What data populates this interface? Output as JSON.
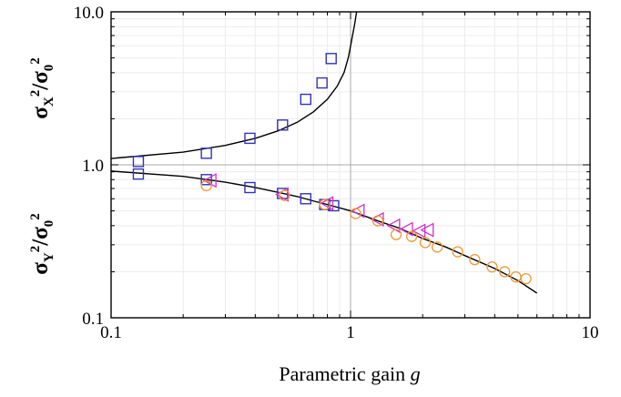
{
  "chart_data": {
    "type": "scatter",
    "title": "",
    "xlabel": "Parametric gain",
    "xlabel_symbol": "g",
    "ylabel_top": {
      "base": "σ",
      "sub1": "X",
      "sup1": "2",
      "slash": "/",
      "base2": "σ",
      "sub2": "0",
      "sup2": "2"
    },
    "ylabel_bottom": {
      "base": "σ",
      "sub1": "Y",
      "sup1": "2",
      "slash": "/",
      "base2": "σ",
      "sub2": "0",
      "sup2": "2"
    },
    "x_scale": "log",
    "y_scale": "log",
    "xlim": [
      0.1,
      10
    ],
    "ylim": [
      0.1,
      10
    ],
    "x_ticks": [
      {
        "value": 0.1,
        "label": "0.1"
      },
      {
        "value": 1,
        "label": "1"
      },
      {
        "value": 10,
        "label": "10"
      }
    ],
    "y_ticks": [
      {
        "value": 0.1,
        "label": "0.1"
      },
      {
        "value": 1,
        "label": "1.0"
      },
      {
        "value": 10,
        "label": "10.0"
      }
    ],
    "grid": true,
    "reference_lines": {
      "x": 1,
      "y": 1
    },
    "series": [
      {
        "marker": "square",
        "color": "#3333bb",
        "points": [
          [
            0.13,
            1.05
          ],
          [
            0.25,
            1.19
          ],
          [
            0.38,
            1.49
          ],
          [
            0.52,
            1.82
          ],
          [
            0.65,
            2.68
          ],
          [
            0.76,
            3.43
          ],
          [
            0.83,
            4.95
          ]
        ]
      },
      {
        "marker": "square",
        "color": "#3333bb",
        "points": [
          [
            0.13,
            0.87
          ],
          [
            0.25,
            0.8
          ],
          [
            0.38,
            0.71
          ],
          [
            0.52,
            0.65
          ],
          [
            0.65,
            0.6
          ],
          [
            0.78,
            0.55
          ],
          [
            0.85,
            0.54
          ]
        ]
      },
      {
        "marker": "triangle-left",
        "color": "#cc33cc",
        "points": [
          [
            0.26,
            0.79
          ],
          [
            0.52,
            0.64
          ],
          [
            0.8,
            0.56
          ],
          [
            1.08,
            0.5
          ],
          [
            1.3,
            0.44
          ],
          [
            1.52,
            0.4
          ],
          [
            1.72,
            0.38
          ],
          [
            1.94,
            0.37
          ],
          [
            2.1,
            0.375
          ]
        ]
      },
      {
        "marker": "circle",
        "color": "#ee9933",
        "points": [
          [
            0.25,
            0.73
          ],
          [
            0.53,
            0.63
          ],
          [
            0.78,
            0.55
          ],
          [
            1.05,
            0.48
          ],
          [
            1.3,
            0.43
          ],
          [
            1.55,
            0.35
          ],
          [
            1.8,
            0.34
          ],
          [
            2.05,
            0.31
          ],
          [
            2.3,
            0.29
          ],
          [
            2.8,
            0.27
          ],
          [
            3.3,
            0.24
          ],
          [
            3.9,
            0.215
          ],
          [
            4.4,
            0.2
          ],
          [
            4.9,
            0.185
          ],
          [
            5.4,
            0.18
          ]
        ]
      }
    ],
    "curves": [
      {
        "color": "#000000",
        "points": [
          [
            0.1,
            1.1
          ],
          [
            0.2,
            1.21
          ],
          [
            0.3,
            1.34
          ],
          [
            0.4,
            1.49
          ],
          [
            0.5,
            1.67
          ],
          [
            0.6,
            1.9
          ],
          [
            0.7,
            2.22
          ],
          [
            0.8,
            2.68
          ],
          [
            0.88,
            3.27
          ],
          [
            0.94,
            4.02
          ],
          [
            0.98,
            5.06
          ],
          [
            1.01,
            6.5
          ],
          [
            1.04,
            8.3
          ],
          [
            1.06,
            10.0
          ]
        ]
      },
      {
        "color": "#000000",
        "points": [
          [
            0.1,
            0.91
          ],
          [
            0.2,
            0.84
          ],
          [
            0.3,
            0.77
          ],
          [
            0.4,
            0.71
          ],
          [
            0.5,
            0.66
          ],
          [
            0.6,
            0.62
          ],
          [
            0.7,
            0.58
          ],
          [
            0.8,
            0.55
          ],
          [
            1.0,
            0.5
          ],
          [
            1.3,
            0.43
          ],
          [
            1.6,
            0.385
          ],
          [
            2.0,
            0.33
          ],
          [
            2.5,
            0.29
          ],
          [
            3.0,
            0.255
          ],
          [
            4.0,
            0.21
          ],
          [
            5.0,
            0.175
          ],
          [
            6.0,
            0.145
          ]
        ]
      }
    ]
  }
}
